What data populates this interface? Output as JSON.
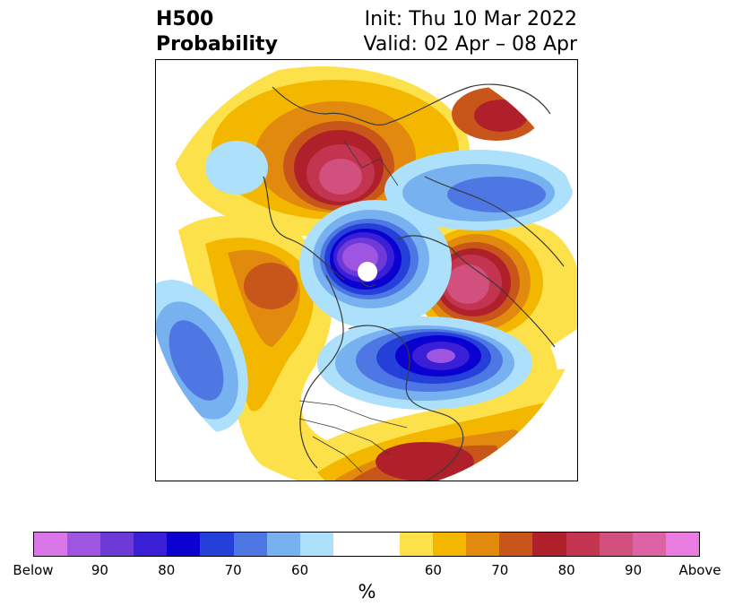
{
  "header": {
    "field": "H500",
    "product": "Probability",
    "init": "Init: Thu 10 Mar 2022",
    "valid": "Valid: 02 Apr – 08 Apr"
  },
  "map": {
    "projection": "north-polar-stereographic",
    "coastline_color": "#3a3a3a",
    "anomaly_centers": [
      {
        "region": "western-siberia",
        "category": "Above",
        "peak": "90"
      },
      {
        "region": "northern-europe",
        "category": "Above",
        "peak": "90"
      },
      {
        "region": "gulf-of-alaska-bering",
        "category": "Above",
        "peak": "70"
      },
      {
        "region": "southeastern-us-gulf",
        "category": "Above",
        "peak": "80"
      },
      {
        "region": "arctic-ocean",
        "category": "Below",
        "peak": "Below"
      },
      {
        "region": "hudson-bay-labrador",
        "category": "Below",
        "peak": "90"
      },
      {
        "region": "kazakhstan-central-asia",
        "category": "Below",
        "peak": "70"
      },
      {
        "region": "north-pacific",
        "category": "Below",
        "peak": "70"
      }
    ]
  },
  "colorbar": {
    "colors": [
      "#d977e8",
      "#9e55e2",
      "#6d3ad8",
      "#3a1fd6",
      "#0a00cf",
      "#2440d9",
      "#4e77e4",
      "#78b1ef",
      "#ace0fb",
      "#ffffff",
      "#ffffff",
      "#fde14a",
      "#f3b700",
      "#e18a0e",
      "#c8561a",
      "#b0202a",
      "#c23450",
      "#d2507d",
      "#dd62a6",
      "#e87ce0"
    ],
    "ticks": [
      "Below",
      "90",
      "80",
      "70",
      "60",
      "60",
      "70",
      "80",
      "90",
      "Above"
    ],
    "unit": "%"
  }
}
